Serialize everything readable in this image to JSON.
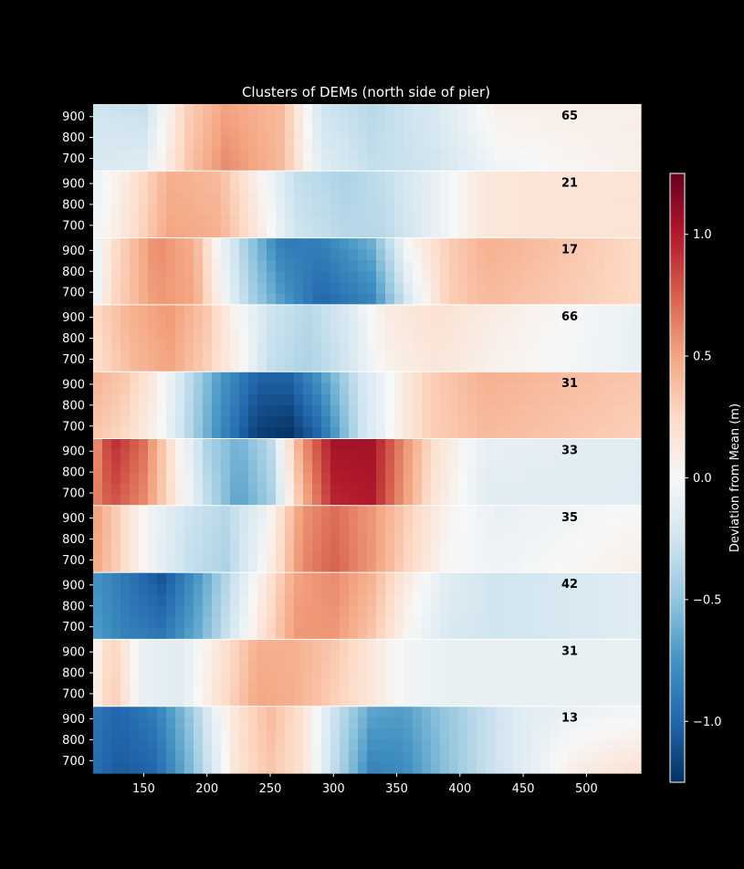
{
  "chart_data": {
    "type": "heatmap",
    "title": "Clusters of DEMs (north side of pier)",
    "xlabel": "",
    "ylabel": "",
    "x_ticks": [
      150,
      200,
      250,
      300,
      350,
      400,
      450,
      500
    ],
    "y_ticks": [
      900,
      800,
      700
    ],
    "x_range": [
      110,
      543
    ],
    "y_range": [
      640,
      960
    ],
    "colorbar": {
      "label": "Deviation from Mean (m)",
      "range": [
        -1.25,
        1.25
      ],
      "ticks": [
        "1.0",
        "0.5",
        "0.0",
        "−0.5",
        "−1.0"
      ],
      "tick_values": [
        1.0,
        0.5,
        0.0,
        -0.5,
        -1.0
      ],
      "colormap": "RdBu_r"
    },
    "panels": [
      {
        "count": "65",
        "x": [
          110,
          150,
          185,
          215,
          260,
          290,
          330,
          380,
          430,
          543
        ],
        "top": [
          -0.25,
          -0.3,
          0.3,
          0.5,
          0.4,
          -0.25,
          -0.35,
          -0.2,
          0.08,
          0.08
        ],
        "bottom": [
          -0.2,
          -0.15,
          0.35,
          0.6,
          0.4,
          -0.15,
          -0.3,
          -0.25,
          -0.05,
          0.08
        ]
      },
      {
        "count": "21",
        "x": [
          110,
          135,
          170,
          210,
          240,
          270,
          310,
          340,
          380,
          420,
          543
        ],
        "top": [
          -0.1,
          0.1,
          0.45,
          0.4,
          0.05,
          -0.3,
          -0.4,
          -0.3,
          -0.1,
          0.15,
          0.18
        ],
        "bottom": [
          -0.05,
          0.15,
          0.5,
          0.45,
          0.15,
          -0.25,
          -0.35,
          -0.35,
          -0.1,
          0.15,
          0.18
        ]
      },
      {
        "count": "17",
        "x": [
          110,
          125,
          160,
          190,
          215,
          235,
          260,
          290,
          330,
          360,
          390,
          420,
          460,
          543
        ],
        "top": [
          -0.15,
          0.2,
          0.6,
          0.45,
          -0.15,
          -0.5,
          -0.9,
          -0.85,
          -0.6,
          0.05,
          0.3,
          0.45,
          0.4,
          0.25
        ],
        "bottom": [
          -0.15,
          0.25,
          0.55,
          0.5,
          -0.05,
          -0.4,
          -0.7,
          -1.0,
          -0.85,
          -0.2,
          0.3,
          0.4,
          0.35,
          0.25
        ]
      },
      {
        "count": "66",
        "x": [
          110,
          140,
          170,
          200,
          225,
          250,
          280,
          310,
          340,
          380,
          430,
          543
        ],
        "top": [
          0.25,
          0.45,
          0.55,
          0.35,
          0.0,
          -0.25,
          -0.35,
          -0.2,
          0.1,
          0.2,
          0.1,
          -0.1
        ],
        "bottom": [
          0.2,
          0.4,
          0.5,
          0.3,
          0.05,
          -0.3,
          -0.4,
          -0.25,
          0.05,
          0.15,
          0.05,
          -0.1
        ]
      },
      {
        "count": "31",
        "x": [
          110,
          135,
          160,
          185,
          210,
          240,
          265,
          290,
          320,
          345,
          375,
          420,
          543
        ],
        "top": [
          0.45,
          0.35,
          0.1,
          -0.3,
          -0.7,
          -1.0,
          -1.0,
          -0.7,
          -0.25,
          0.0,
          0.3,
          0.45,
          0.35
        ],
        "bottom": [
          0.35,
          0.25,
          0.05,
          -0.35,
          -0.8,
          -1.2,
          -1.25,
          -1.0,
          -0.3,
          0.0,
          0.3,
          0.4,
          0.3
        ]
      },
      {
        "count": "33",
        "x": [
          110,
          125,
          150,
          175,
          200,
          225,
          250,
          275,
          300,
          330,
          355,
          380,
          420,
          543
        ],
        "top": [
          0.5,
          0.95,
          0.7,
          0.1,
          -0.4,
          -0.6,
          -0.35,
          0.55,
          1.05,
          1.05,
          0.6,
          0.2,
          -0.1,
          -0.15
        ],
        "bottom": [
          0.6,
          0.8,
          0.6,
          0.15,
          -0.3,
          -0.7,
          -0.45,
          0.4,
          0.95,
          1.0,
          0.55,
          0.15,
          -0.15,
          -0.15
        ]
      },
      {
        "count": "35",
        "x": [
          110,
          130,
          155,
          185,
          215,
          245,
          275,
          300,
          330,
          360,
          390,
          430,
          543
        ],
        "top": [
          0.55,
          0.3,
          -0.05,
          -0.25,
          -0.35,
          -0.1,
          0.55,
          0.7,
          0.55,
          0.3,
          0.05,
          -0.1,
          0.0
        ],
        "bottom": [
          0.5,
          0.3,
          -0.05,
          -0.3,
          -0.4,
          0.0,
          0.6,
          0.75,
          0.55,
          0.25,
          0.0,
          -0.05,
          0.08
        ]
      },
      {
        "count": "42",
        "x": [
          110,
          135,
          165,
          195,
          220,
          245,
          270,
          300,
          330,
          360,
          390,
          430,
          543
        ],
        "top": [
          -0.75,
          -0.9,
          -1.1,
          -0.7,
          -0.3,
          0.1,
          0.5,
          0.6,
          0.45,
          0.1,
          -0.15,
          -0.25,
          -0.15
        ],
        "bottom": [
          -0.7,
          -0.85,
          -0.9,
          -0.6,
          -0.2,
          0.2,
          0.55,
          0.55,
          0.35,
          0.0,
          -0.2,
          -0.25,
          -0.15
        ]
      },
      {
        "count": "31",
        "x": [
          110,
          125,
          150,
          180,
          210,
          240,
          270,
          300,
          330,
          360,
          400,
          543
        ],
        "top": [
          0.0,
          0.3,
          -0.1,
          -0.15,
          0.15,
          0.45,
          0.45,
          0.35,
          0.15,
          -0.05,
          -0.1,
          -0.1
        ],
        "bottom": [
          0.05,
          0.35,
          -0.1,
          -0.15,
          0.2,
          0.5,
          0.45,
          0.3,
          0.15,
          -0.05,
          -0.1,
          -0.1
        ]
      },
      {
        "count": "13",
        "x": [
          110,
          130,
          160,
          185,
          205,
          225,
          250,
          275,
          300,
          330,
          355,
          385,
          420,
          450,
          490,
          543
        ],
        "top": [
          -0.9,
          -1.0,
          -0.85,
          -0.5,
          -0.1,
          0.2,
          0.4,
          0.2,
          -0.25,
          -0.65,
          -0.7,
          -0.5,
          -0.3,
          -0.15,
          -0.1,
          -0.05
        ],
        "bottom": [
          -0.95,
          -1.05,
          -1.0,
          -0.6,
          -0.2,
          0.2,
          0.35,
          0.2,
          -0.3,
          -0.85,
          -0.8,
          -0.55,
          -0.3,
          -0.15,
          0.1,
          0.2
        ]
      }
    ]
  }
}
